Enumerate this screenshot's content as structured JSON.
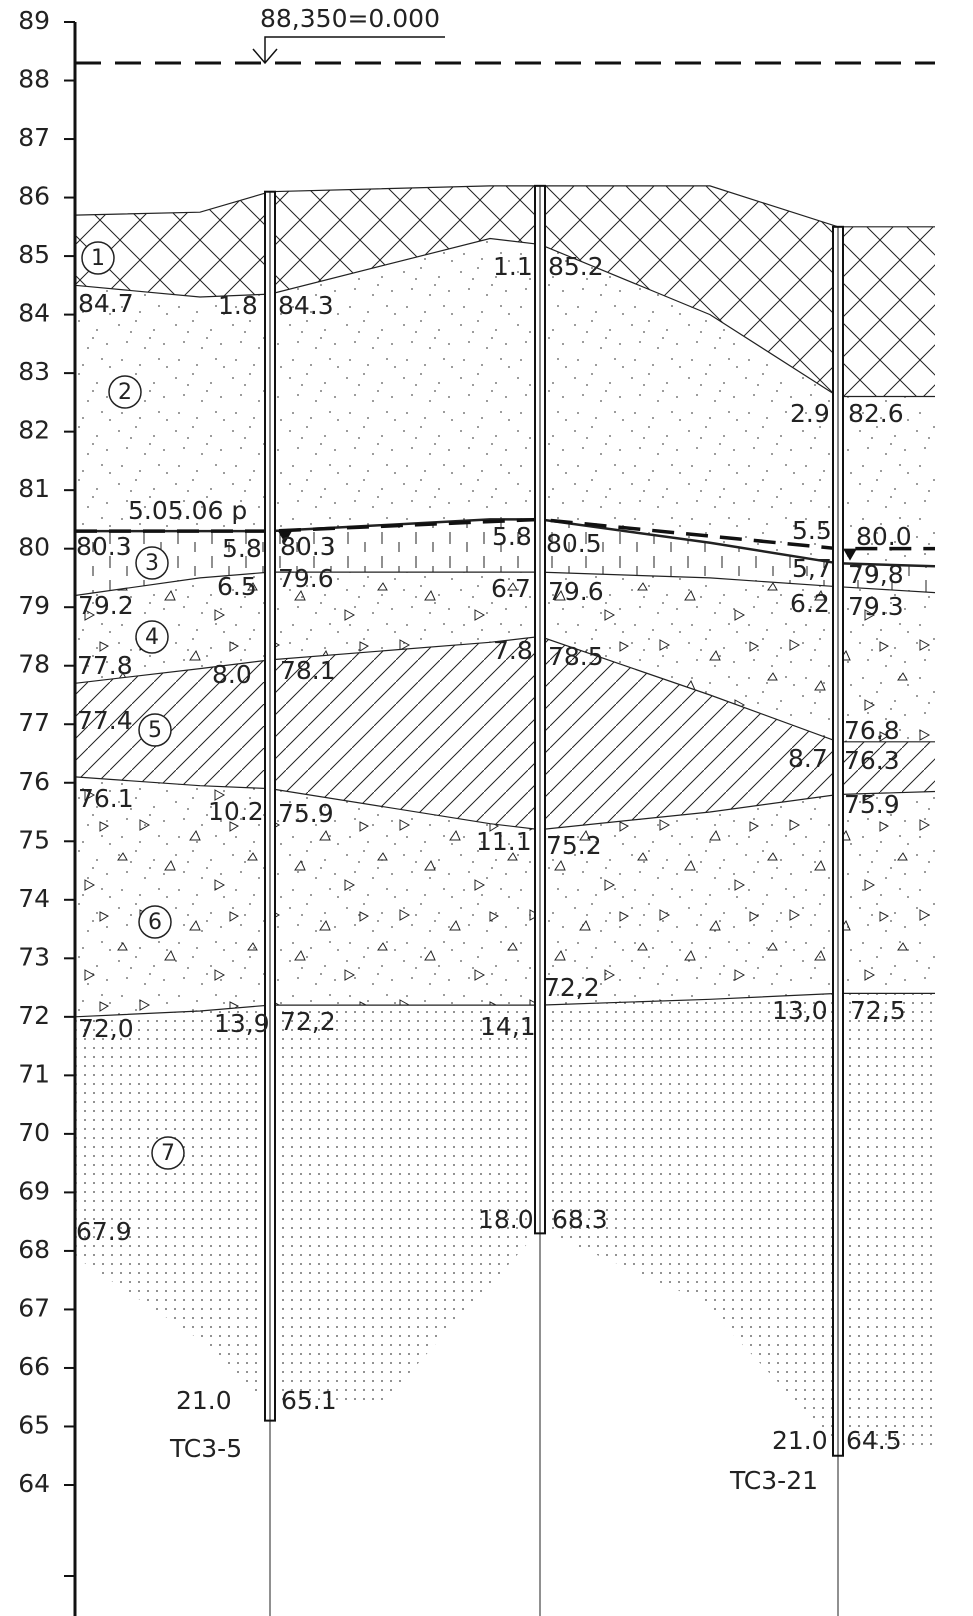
{
  "datum": "88,350=0.000",
  "water_level_date": "5.05.06 р",
  "elevation_axis": [
    89,
    88,
    87,
    86,
    85,
    84,
    83,
    82,
    81,
    80,
    79,
    78,
    77,
    76,
    75,
    74,
    73,
    72,
    71,
    70,
    69,
    68,
    67,
    66,
    65,
    64
  ],
  "layer_numbers": [
    "1",
    "2",
    "3",
    "4",
    "5",
    "6",
    "7"
  ],
  "boreholes": [
    "TC3-5",
    "TC3-21"
  ],
  "labels": [
    "84.7",
    "1.8",
    "84.3",
    "1.1",
    "85.2",
    "2.9",
    "82.6",
    "80.3",
    "5.8",
    "80.3",
    "5.8",
    "80.5",
    "5.5",
    "80.0",
    "5,7",
    "79,8",
    "79.2",
    "6.5",
    "79.6",
    "6.7",
    "79.6",
    "6.2",
    "79.3",
    "77.8",
    "8.0",
    "78.1",
    "7.8",
    "78.5",
    "77.4",
    "76.8",
    "8.7",
    "76.3",
    "76.1",
    "10.2",
    "75.9",
    "75.9",
    "11.1",
    "75.2",
    "72,2",
    "72,0",
    "13,9",
    "72,2",
    "14,1",
    "13,0",
    "72,5",
    "67.9",
    "18.0",
    "68.3",
    "21.0",
    "65.1",
    "21.0",
    "64.5"
  ]
}
